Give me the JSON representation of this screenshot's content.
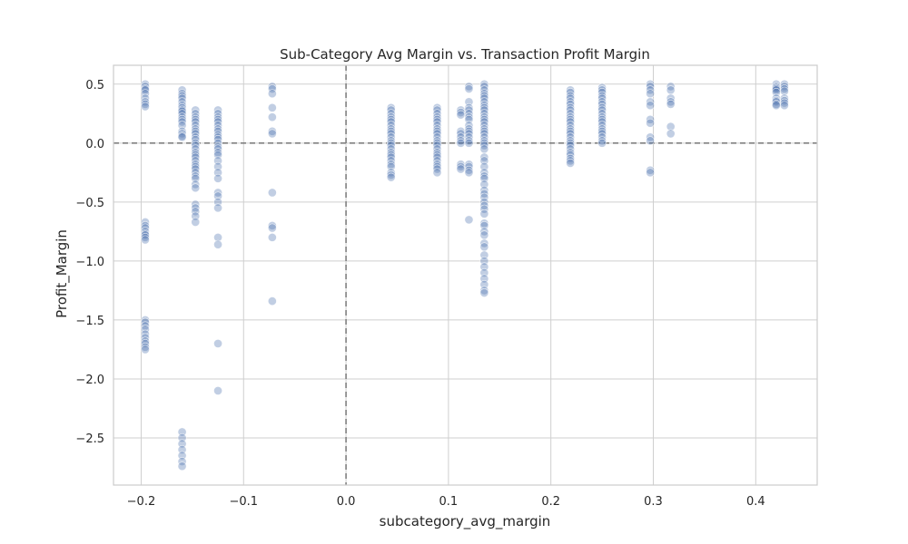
{
  "chart_data": {
    "type": "scatter",
    "title": "Sub-Category Avg Margin vs. Transaction Profit Margin",
    "xlabel": "subcategory_avg_margin",
    "ylabel": "Profit_Margin",
    "xlim": [
      -0.227,
      0.46
    ],
    "ylim": [
      -2.9,
      0.66
    ],
    "xticks": [
      -0.2,
      -0.1,
      0.0,
      0.1,
      0.2,
      0.3,
      0.4
    ],
    "xtick_labels": [
      "−0.2",
      "−0.1",
      "0.0",
      "0.1",
      "0.2",
      "0.3",
      "0.4"
    ],
    "yticks": [
      0.5,
      0.0,
      -0.5,
      -1.0,
      -1.5,
      -2.0,
      -2.5
    ],
    "ytick_labels": [
      "0.5",
      "0.0",
      "−0.5",
      "−1.0",
      "−1.5",
      "−2.0",
      "−2.5"
    ],
    "grid": true,
    "reference_lines": {
      "x": 0,
      "y": 0
    },
    "point_color": "#4c72b0",
    "point_opacity": 0.35,
    "groups": [
      {
        "x": -0.196,
        "y": [
          0.5,
          0.48,
          0.46,
          0.45,
          0.42,
          0.38,
          0.35,
          0.33,
          0.31,
          -0.67,
          -0.7,
          -0.72,
          -0.75,
          -0.77,
          -0.78,
          -0.8,
          -0.82,
          -1.5,
          -1.52,
          -1.55,
          -1.58,
          -1.62,
          -1.65,
          -1.68,
          -1.7,
          -1.73,
          -1.75
        ]
      },
      {
        "x": -0.16,
        "y": [
          0.45,
          0.42,
          0.4,
          0.38,
          0.35,
          0.32,
          0.3,
          0.28,
          0.27,
          0.25,
          0.22,
          0.2,
          0.18,
          0.15,
          0.1,
          0.08,
          0.06,
          0.05,
          -2.45,
          -2.5,
          -2.55,
          -2.6,
          -2.65,
          -2.7,
          -2.74
        ]
      },
      {
        "x": -0.147,
        "y": [
          0.28,
          0.25,
          0.22,
          0.2,
          0.18,
          0.15,
          0.12,
          0.1,
          0.08,
          0.05,
          0.03,
          0.0,
          -0.02,
          -0.05,
          -0.08,
          -0.1,
          -0.12,
          -0.15,
          -0.18,
          -0.2,
          -0.22,
          -0.25,
          -0.28,
          -0.3,
          -0.35,
          -0.38,
          -0.52,
          -0.55,
          -0.58,
          -0.62,
          -0.67
        ]
      },
      {
        "x": -0.125,
        "y": [
          0.28,
          0.25,
          0.22,
          0.2,
          0.18,
          0.15,
          0.12,
          0.1,
          0.07,
          0.05,
          0.03,
          0.0,
          -0.03,
          -0.05,
          -0.08,
          -0.1,
          -0.15,
          -0.2,
          -0.25,
          -0.3,
          -0.42,
          -0.45,
          -0.5,
          -0.55,
          -0.8,
          -0.86,
          -1.7,
          -2.1
        ]
      },
      {
        "x": -0.072,
        "y": [
          0.48,
          0.46,
          0.42,
          0.3,
          0.22,
          0.1,
          0.08,
          -0.42,
          -0.7,
          -0.72,
          -0.8,
          -1.34
        ]
      },
      {
        "x": 0.044,
        "y": [
          0.3,
          0.28,
          0.25,
          0.22,
          0.2,
          0.18,
          0.15,
          0.12,
          0.1,
          0.08,
          0.05,
          0.02,
          0.0,
          -0.02,
          -0.05,
          -0.08,
          -0.1,
          -0.12,
          -0.15,
          -0.18,
          -0.2,
          -0.25,
          -0.27,
          -0.29
        ]
      },
      {
        "x": 0.089,
        "y": [
          0.3,
          0.28,
          0.25,
          0.22,
          0.2,
          0.18,
          0.15,
          0.12,
          0.1,
          0.08,
          0.05,
          0.02,
          0.0,
          -0.02,
          -0.05,
          -0.08,
          -0.1,
          -0.12,
          -0.15,
          -0.18,
          -0.2,
          -0.22,
          -0.25
        ]
      },
      {
        "x": 0.112,
        "y": [
          0.28,
          0.26,
          0.24,
          0.1,
          0.08,
          0.05,
          0.02,
          0.0,
          -0.18,
          -0.2,
          -0.22
        ]
      },
      {
        "x": 0.12,
        "y": [
          0.48,
          0.46,
          0.35,
          0.3,
          0.28,
          0.25,
          0.22,
          0.2,
          0.15,
          0.12,
          0.1,
          0.08,
          0.05,
          0.02,
          0.0,
          -0.18,
          -0.2,
          -0.23,
          -0.25,
          -0.65
        ]
      },
      {
        "x": 0.135,
        "y": [
          0.5,
          0.48,
          0.45,
          0.42,
          0.4,
          0.38,
          0.35,
          0.32,
          0.3,
          0.28,
          0.25,
          0.22,
          0.2,
          0.18,
          0.15,
          0.12,
          0.1,
          0.08,
          0.05,
          0.02,
          0.0,
          -0.02,
          -0.05,
          -0.12,
          -0.15,
          -0.2,
          -0.25,
          -0.28,
          -0.3,
          -0.35,
          -0.4,
          -0.43,
          -0.46,
          -0.5,
          -0.53,
          -0.56,
          -0.6,
          -0.68,
          -0.7,
          -0.75,
          -0.78,
          -0.85,
          -0.88,
          -0.95,
          -1.0,
          -1.05,
          -1.1,
          -1.15,
          -1.2,
          -1.25,
          -1.27
        ]
      },
      {
        "x": 0.219,
        "y": [
          0.45,
          0.43,
          0.4,
          0.38,
          0.35,
          0.33,
          0.3,
          0.28,
          0.25,
          0.22,
          0.2,
          0.18,
          0.15,
          0.12,
          0.1,
          0.08,
          0.05,
          0.02,
          0.0,
          -0.02,
          -0.05,
          -0.08,
          -0.1,
          -0.13,
          -0.15,
          -0.17
        ]
      },
      {
        "x": 0.25,
        "y": [
          0.47,
          0.45,
          0.43,
          0.4,
          0.38,
          0.35,
          0.33,
          0.3,
          0.28,
          0.25,
          0.22,
          0.2,
          0.18,
          0.15,
          0.12,
          0.1,
          0.08,
          0.05,
          0.02,
          0.0
        ]
      },
      {
        "x": 0.297,
        "y": [
          0.5,
          0.48,
          0.45,
          0.42,
          0.35,
          0.32,
          0.2,
          0.17,
          0.05,
          0.02,
          -0.23,
          -0.25
        ]
      },
      {
        "x": 0.317,
        "y": [
          0.48,
          0.45,
          0.38,
          0.35,
          0.33,
          0.14,
          0.08
        ]
      },
      {
        "x": 0.42,
        "y": [
          0.5,
          0.48,
          0.47,
          0.46,
          0.45,
          0.43,
          0.38,
          0.36,
          0.35,
          0.33,
          0.32
        ]
      },
      {
        "x": 0.428,
        "y": [
          0.5,
          0.48,
          0.46,
          0.44,
          0.38,
          0.36,
          0.34,
          0.32
        ]
      }
    ]
  }
}
